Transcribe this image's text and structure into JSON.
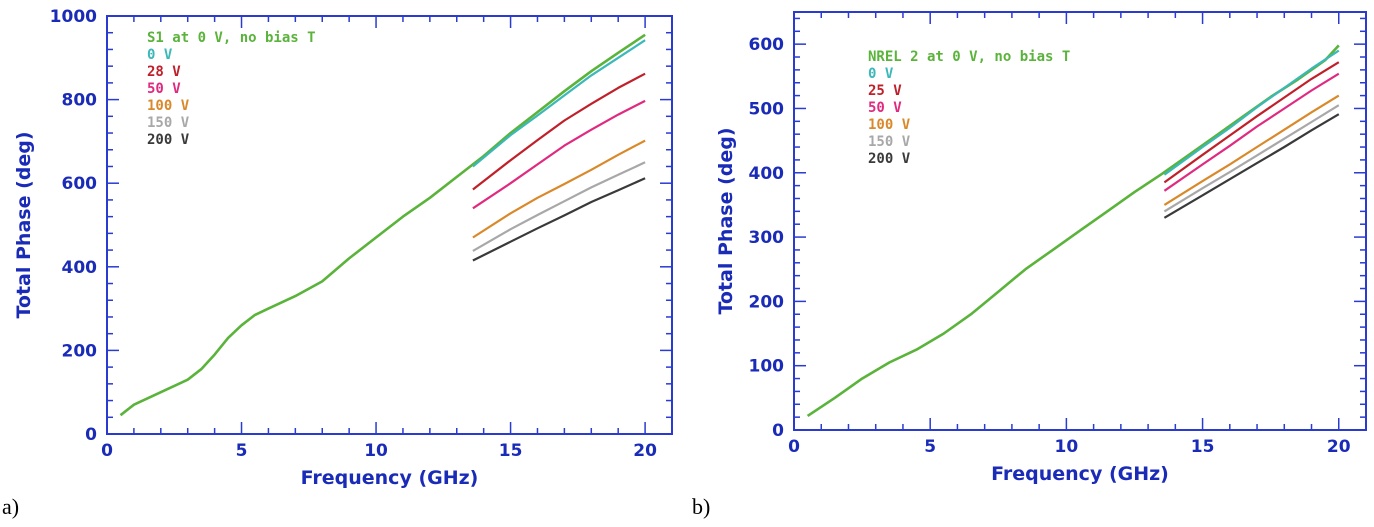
{
  "colors": {
    "axis": "#1a2bb8",
    "frame": "#2a3bd0"
  },
  "panels": [
    {
      "label": "a)"
    },
    {
      "label": "b)"
    }
  ],
  "chart_data": [
    {
      "type": "line",
      "xlabel": "Frequency (GHz)",
      "ylabel": "Total Phase (deg)",
      "xlim": [
        0,
        21
      ],
      "ylim": [
        0,
        1000
      ],
      "xticks": [
        0,
        5,
        10,
        15,
        20
      ],
      "yticks": [
        0,
        200,
        400,
        600,
        800,
        1000
      ],
      "legend_position": "top-left",
      "series": [
        {
          "name": "S1 at 0 V, no bias T",
          "color": "#5ab33a",
          "x": [
            0.5,
            1.0,
            2.0,
            3.0,
            3.5,
            4.0,
            4.5,
            5.0,
            5.5,
            6.0,
            7.0,
            8.0,
            9.0,
            10.0,
            11.0,
            12.0,
            13.0,
            14.0,
            15.0,
            16.0,
            17.0,
            18.0,
            19.0,
            20.0
          ],
          "y": [
            45,
            70,
            100,
            130,
            155,
            190,
            230,
            260,
            285,
            300,
            330,
            365,
            420,
            470,
            520,
            565,
            615,
            665,
            720,
            770,
            820,
            868,
            912,
            955
          ]
        },
        {
          "name": "0 V",
          "color": "#3bb8b8",
          "x": [
            13.6,
            15.0,
            16.0,
            17.0,
            18.0,
            19.0,
            20.0
          ],
          "y": [
            640,
            715,
            762,
            810,
            858,
            900,
            942
          ]
        },
        {
          "name": "28 V",
          "color": "#c0202a",
          "x": [
            13.6,
            15.0,
            16.0,
            17.0,
            18.0,
            19.0,
            20.0
          ],
          "y": [
            585,
            655,
            703,
            750,
            790,
            828,
            862
          ]
        },
        {
          "name": "50 V",
          "color": "#e02a80",
          "x": [
            13.6,
            15.0,
            16.0,
            17.0,
            18.0,
            19.0,
            20.0
          ],
          "y": [
            540,
            600,
            645,
            690,
            728,
            764,
            797
          ]
        },
        {
          "name": "100 V",
          "color": "#d9892a",
          "x": [
            13.6,
            15.0,
            16.0,
            17.0,
            18.0,
            19.0,
            20.0
          ],
          "y": [
            470,
            528,
            565,
            598,
            632,
            668,
            702
          ]
        },
        {
          "name": "150 V",
          "color": "#a8a8a8",
          "x": [
            13.6,
            15.0,
            16.0,
            17.0,
            18.0,
            19.0,
            20.0
          ],
          "y": [
            438,
            490,
            524,
            557,
            590,
            620,
            650
          ]
        },
        {
          "name": "200 V",
          "color": "#3a3a3a",
          "x": [
            13.6,
            15.0,
            16.0,
            17.0,
            18.0,
            19.0,
            20.0
          ],
          "y": [
            415,
            460,
            492,
            523,
            555,
            583,
            612
          ]
        }
      ]
    },
    {
      "type": "line",
      "xlabel": "Frequency (GHz)",
      "ylabel": "Total Phase (deg)",
      "xlim": [
        0,
        21
      ],
      "ylim": [
        0,
        650
      ],
      "xticks": [
        0,
        5,
        10,
        15,
        20
      ],
      "yticks": [
        0,
        100,
        200,
        300,
        400,
        500,
        600
      ],
      "legend_position": "top-left",
      "series": [
        {
          "name": "NREL 2 at 0 V, no bias T",
          "color": "#5ab33a",
          "x": [
            0.5,
            1.5,
            2.5,
            3.5,
            4.5,
            5.5,
            6.5,
            7.5,
            8.5,
            9.5,
            10.5,
            11.5,
            12.5,
            13.5,
            14.5,
            15.5,
            16.5,
            17.5,
            18.5,
            19.5,
            20.0
          ],
          "y": [
            22,
            50,
            80,
            105,
            125,
            150,
            180,
            215,
            250,
            280,
            310,
            340,
            370,
            398,
            428,
            458,
            488,
            518,
            545,
            575,
            598
          ]
        },
        {
          "name": "0 V",
          "color": "#3bb8b8",
          "x": [
            13.6,
            15.0,
            16.0,
            17.0,
            18.0,
            19.0,
            20.0
          ],
          "y": [
            397,
            440,
            470,
            502,
            532,
            562,
            590
          ]
        },
        {
          "name": "25 V",
          "color": "#c0202a",
          "x": [
            13.6,
            15.0,
            16.0,
            17.0,
            18.0,
            19.0,
            20.0
          ],
          "y": [
            385,
            428,
            458,
            488,
            517,
            546,
            572
          ]
        },
        {
          "name": "50 V",
          "color": "#e02a80",
          "x": [
            13.6,
            15.0,
            16.0,
            17.0,
            18.0,
            19.0,
            20.0
          ],
          "y": [
            372,
            413,
            442,
            472,
            500,
            528,
            554
          ]
        },
        {
          "name": "100 V",
          "color": "#d9892a",
          "x": [
            13.6,
            15.0,
            16.0,
            17.0,
            18.0,
            19.0,
            20.0
          ],
          "y": [
            350,
            387,
            413,
            440,
            467,
            494,
            520
          ]
        },
        {
          "name": "150 V",
          "color": "#a8a8a8",
          "x": [
            13.6,
            15.0,
            16.0,
            17.0,
            18.0,
            19.0,
            20.0
          ],
          "y": [
            340,
            376,
            401,
            427,
            453,
            479,
            505
          ]
        },
        {
          "name": "200 V",
          "color": "#3a3a3a",
          "x": [
            13.6,
            15.0,
            16.0,
            17.0,
            18.0,
            19.0,
            20.0
          ],
          "y": [
            330,
            365,
            390,
            415,
            440,
            466,
            491
          ]
        }
      ]
    }
  ]
}
